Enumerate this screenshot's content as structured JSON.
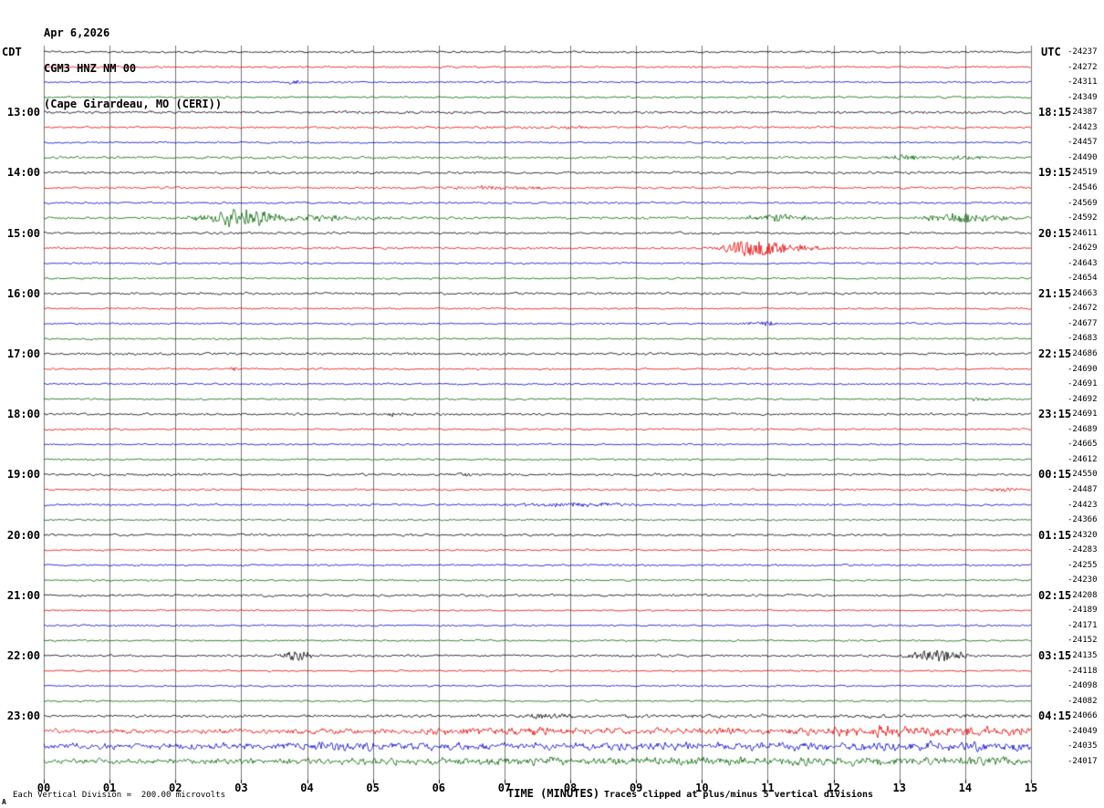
{
  "header": {
    "date": "Apr 6,2026",
    "station": "CGM3 HNZ NM 00",
    "location": "(Cape Girardeau, MO (CERI))"
  },
  "axes": {
    "left_tz": "CDT",
    "right_tz": "UTC",
    "x_label": "TIME (MINUTES)",
    "x_ticks": [
      "00",
      "01",
      "02",
      "03",
      "04",
      "05",
      "06",
      "07",
      "08",
      "09",
      "10",
      "11",
      "12",
      "13",
      "14",
      "15"
    ]
  },
  "footer": {
    "division_note": "Each Vertical Division =  200.00 microvolts",
    "clip_note": "Traces clipped at plus/minus 5 vertical divisions",
    "corner_mark": "A"
  },
  "chart_data": {
    "type": "line",
    "subtype": "helicorder-seismogram",
    "title": "CGM3 HNZ NM 00 (Cape Girardeau, MO (CERI))",
    "xlabel": "TIME (MINUTES)",
    "x_range_minutes": [
      0,
      15
    ],
    "grid": true,
    "seed": 987654,
    "trace_colors": {
      "black": "#000000",
      "red": "#e60000",
      "blue": "#0000cc",
      "green": "#006600"
    },
    "color_cycle": [
      "black",
      "red",
      "blue",
      "green"
    ],
    "left_hour_labels": [
      "13:00",
      "14:00",
      "15:00",
      "16:00",
      "17:00",
      "18:00",
      "19:00",
      "20:00",
      "21:00",
      "22:00",
      "23:00"
    ],
    "right_hour_labels": [
      "18:15",
      "19:15",
      "20:15",
      "21:15",
      "22:15",
      "23:15",
      "00:15",
      "01:15",
      "02:15",
      "03:15",
      "04:15"
    ],
    "rows": [
      {
        "color": "black",
        "value": "-24237",
        "amp": 1.3
      },
      {
        "color": "red",
        "value": "-24272",
        "amp": 1.1
      },
      {
        "color": "blue",
        "value": "-24311",
        "amp": 1.0,
        "events": [
          {
            "m": 3.8,
            "w": 0.15,
            "a": 2.2
          }
        ]
      },
      {
        "color": "green",
        "value": "-24349",
        "amp": 1.1
      },
      {
        "color": "black",
        "value": "-24387",
        "left": "13:00",
        "right": "18:15",
        "amp": 1.5
      },
      {
        "color": "red",
        "value": "-24423",
        "amp": 1.2,
        "events": [
          {
            "m": 7.8,
            "w": 1.5,
            "a": 1.0
          }
        ]
      },
      {
        "color": "blue",
        "value": "-24457",
        "amp": 1.0
      },
      {
        "color": "green",
        "value": "-24490",
        "amp": 1.4,
        "events": [
          {
            "m": 13.1,
            "w": 0.35,
            "a": 2.6
          },
          {
            "m": 14.05,
            "w": 0.3,
            "a": 2.4
          }
        ]
      },
      {
        "color": "black",
        "value": "-24519",
        "left": "14:00",
        "right": "19:15",
        "amp": 1.3
      },
      {
        "color": "red",
        "value": "-24546",
        "amp": 1.2,
        "events": [
          {
            "m": 7.0,
            "w": 0.9,
            "a": 1.6
          }
        ]
      },
      {
        "color": "blue",
        "value": "-24569",
        "amp": 1.2
      },
      {
        "color": "green",
        "value": "-24592",
        "amp": 1.4,
        "events": [
          {
            "m": 2.95,
            "w": 0.55,
            "a": 10.0
          },
          {
            "m": 3.9,
            "w": 1.1,
            "a": 3.5
          },
          {
            "m": 11.15,
            "w": 0.5,
            "a": 3.8
          },
          {
            "m": 14.0,
            "w": 0.6,
            "a": 5.0
          }
        ]
      },
      {
        "color": "black",
        "value": "-24611",
        "left": "15:00",
        "right": "20:15",
        "amp": 1.3
      },
      {
        "color": "red",
        "value": "-24629",
        "amp": 1.2,
        "events": [
          {
            "m": 10.8,
            "w": 0.45,
            "a": 9.5
          },
          {
            "m": 11.4,
            "w": 0.5,
            "a": 3.0
          }
        ]
      },
      {
        "color": "blue",
        "value": "-24643",
        "amp": 1.0
      },
      {
        "color": "green",
        "value": "-24654",
        "amp": 1.0
      },
      {
        "color": "black",
        "value": "-24663",
        "left": "16:00",
        "right": "21:15",
        "amp": 1.3
      },
      {
        "color": "red",
        "value": "-24672",
        "amp": 1.0
      },
      {
        "color": "blue",
        "value": "-24677",
        "amp": 1.0,
        "events": [
          {
            "m": 10.9,
            "w": 0.25,
            "a": 3.2
          }
        ]
      },
      {
        "color": "green",
        "value": "-24683",
        "amp": 1.0
      },
      {
        "color": "black",
        "value": "-24686",
        "left": "17:00",
        "right": "22:15",
        "amp": 1.4
      },
      {
        "color": "red",
        "value": "-24690",
        "amp": 1.0,
        "events": [
          {
            "m": 2.9,
            "w": 0.15,
            "a": 1.8
          }
        ]
      },
      {
        "color": "blue",
        "value": "-24691",
        "amp": 1.0
      },
      {
        "color": "green",
        "value": "-24692",
        "amp": 1.0,
        "events": [
          {
            "m": 14.25,
            "w": 0.2,
            "a": 2.0
          }
        ]
      },
      {
        "color": "black",
        "value": "-24691",
        "left": "18:00",
        "right": "23:15",
        "amp": 1.3,
        "events": [
          {
            "m": 5.35,
            "w": 0.2,
            "a": 2.2
          }
        ]
      },
      {
        "color": "red",
        "value": "-24689",
        "amp": 1.1
      },
      {
        "color": "blue",
        "value": "-24665",
        "amp": 1.0
      },
      {
        "color": "green",
        "value": "-24612",
        "amp": 1.0
      },
      {
        "color": "black",
        "value": "-24550",
        "left": "19:00",
        "right": "00:15",
        "amp": 1.3,
        "events": [
          {
            "m": 6.35,
            "w": 0.25,
            "a": 2.0
          }
        ]
      },
      {
        "color": "red",
        "value": "-24487",
        "amp": 1.1,
        "events": [
          {
            "m": 14.6,
            "w": 0.3,
            "a": 1.8
          }
        ]
      },
      {
        "color": "blue",
        "value": "-24423",
        "amp": 1.1,
        "events": [
          {
            "m": 8.0,
            "w": 1.1,
            "a": 2.2
          }
        ]
      },
      {
        "color": "green",
        "value": "-24366",
        "amp": 1.0
      },
      {
        "color": "black",
        "value": "-24320",
        "left": "20:00",
        "right": "01:15",
        "amp": 1.3
      },
      {
        "color": "red",
        "value": "-24283",
        "amp": 1.0
      },
      {
        "color": "blue",
        "value": "-24255",
        "amp": 1.0
      },
      {
        "color": "green",
        "value": "-24230",
        "amp": 1.0
      },
      {
        "color": "black",
        "value": "-24208",
        "left": "21:00",
        "right": "02:15",
        "amp": 1.3
      },
      {
        "color": "red",
        "value": "-24189",
        "amp": 1.0
      },
      {
        "color": "blue",
        "value": "-24171",
        "amp": 1.0
      },
      {
        "color": "green",
        "value": "-24152",
        "amp": 1.0
      },
      {
        "color": "black",
        "value": "-24135",
        "left": "22:00",
        "right": "03:15",
        "amp": 1.3,
        "events": [
          {
            "m": 3.85,
            "w": 0.2,
            "a": 6.0
          },
          {
            "m": 13.6,
            "w": 0.45,
            "a": 6.0
          }
        ]
      },
      {
        "color": "red",
        "value": "-24118",
        "amp": 1.0
      },
      {
        "color": "blue",
        "value": "-24098",
        "amp": 1.0
      },
      {
        "color": "green",
        "value": "-24082",
        "amp": 1.0
      },
      {
        "color": "black",
        "value": "-24066",
        "left": "23:00",
        "right": "04:15",
        "amp": 1.4,
        "amp_end": 2.2,
        "events": [
          {
            "m": 7.6,
            "w": 0.5,
            "a": 2.0
          }
        ]
      },
      {
        "color": "red",
        "value": "-24049",
        "amp": 2.2,
        "amp_end": 5.0,
        "events": [
          {
            "m": 7.0,
            "w": 1.2,
            "a": 2.5
          },
          {
            "m": 12.8,
            "w": 1.5,
            "a": 2.5
          }
        ]
      },
      {
        "color": "blue",
        "value": "-24035",
        "amp": 3.2,
        "amp_end": 5.2,
        "events": [
          {
            "m": 4.5,
            "w": 0.8,
            "a": 2.0
          }
        ]
      },
      {
        "color": "green",
        "value": "-24017",
        "amp": 2.8,
        "amp_end": 5.5,
        "events": [
          {
            "m": 7.3,
            "w": 0.8,
            "a": 2.5
          }
        ]
      }
    ]
  }
}
